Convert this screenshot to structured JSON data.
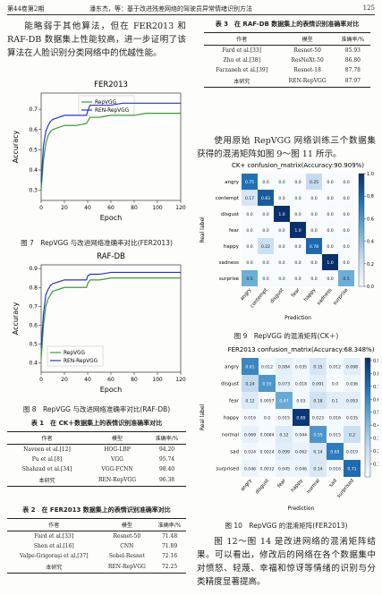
{
  "header": {
    "volume": "第44卷第2期",
    "running_title": "潘东杰，等：基于改进残差网络的驾驶员异常情绪识别方法",
    "page": "125"
  },
  "left_paragraph": "能略弱于其他算法，但在 FER2013 和 RAF-DB 数据集上性能较高，进一步证明了该算法在人脸识别分类网络中的优越性能。",
  "captions": [
    "图 7　RepVGG 与改进网络准确率对比(FER2013)",
    "图 8　RepVGG 与改进网络准确率对比(RAF-DB)",
    "图 9　RepVGG 的混淆矩阵(CK＋)",
    "图 10　RepVGG 的混淆矩阵(FER2013)"
  ],
  "right_paragraphs": [
    "使用原始 RepVGG 网络训练三个数据集获得的混淆矩阵如图 9～图 11 所示。",
    "图 12～图 14 是改进网络的混淆矩阵结果。可以看出，修改后的网络在各个数据集中对愤怒、轻蔑、幸福和惊讶等情绪的识别与分类精度显著提高。"
  ],
  "tables": [
    {
      "title": "表 1　在 CK＋数据集上的表情识别准确率对比",
      "header": [
        "作者",
        "模型",
        "准确率/%"
      ],
      "rows": [
        [
          "Naveen et al.[12]",
          "HOG-LBP",
          "94.20"
        ],
        [
          "Pu et al.[8]",
          "VGG",
          "95.74"
        ],
        [
          "Shahzad et al.[34]",
          "VGG-FCNN",
          "98.40"
        ],
        [
          "本研究",
          "REN-RepVGG",
          "96.38"
        ]
      ]
    },
    {
      "title": "表 2　在 FER2013 数据集上的表情识别准确率对比",
      "header": [
        "作者",
        "模型",
        "准确率/%"
      ],
      "rows": [
        [
          "Fard et al.[33]",
          "Resnet-50",
          "71.48"
        ],
        [
          "Shen et al.[16]",
          "CNN",
          "71.89"
        ],
        [
          "Valpe-Grigoraşi et al.[37]",
          "Sobel-Resnet",
          "72.16"
        ],
        [
          "本研究",
          "REN-RepVGG",
          "72.25"
        ]
      ]
    },
    {
      "title": "表 3　在 RAF-DB 数据集上的表情识别准确率对比",
      "header": [
        "作者",
        "模型",
        "准确率/%"
      ],
      "rows": [
        [
          "Fard et al.[33]",
          "Resnet-50",
          "85.93"
        ],
        [
          "Zhu et al.[38]",
          "ResNeXt-50",
          "86.80"
        ],
        [
          "Farzaneh et al.[39]",
          "Resnet-18",
          "87.78"
        ],
        [
          "本研究",
          "REN-RepVGG",
          "87.97"
        ]
      ]
    }
  ],
  "chart_data": [
    {
      "type": "line",
      "title": "FER2013",
      "x_label": "Epoch",
      "y_label": "Accuracy",
      "legend": "upper center",
      "x": [
        0,
        2,
        4,
        6,
        8,
        10,
        15,
        20,
        30,
        39,
        40,
        42,
        50,
        60,
        70,
        80,
        90,
        100,
        110,
        120
      ],
      "series": [
        {
          "name": "RepVGG",
          "color": "#3a9a3a",
          "values": [
            0.3,
            0.45,
            0.53,
            0.57,
            0.59,
            0.6,
            0.61,
            0.62,
            0.62,
            0.63,
            0.64,
            0.66,
            0.66,
            0.67,
            0.67,
            0.67,
            0.68,
            0.68,
            0.68,
            0.68
          ]
        },
        {
          "name": "REN-RepVGG",
          "color": "#2436c4",
          "values": [
            0.34,
            0.52,
            0.59,
            0.62,
            0.64,
            0.65,
            0.66,
            0.67,
            0.67,
            0.67,
            0.69,
            0.72,
            0.72,
            0.72,
            0.73,
            0.73,
            0.73,
            0.73,
            0.73,
            0.73
          ]
        }
      ],
      "xlim": [
        0,
        120
      ],
      "xticks": [
        0,
        20,
        40,
        60,
        80,
        100,
        120
      ],
      "ylim": [
        0.25,
        0.78
      ],
      "yticks": [
        0.3,
        0.4,
        0.5,
        0.6,
        0.7
      ]
    },
    {
      "type": "line",
      "title": "RAF-DB",
      "x_label": "Epoch",
      "y_label": "Accuracy",
      "legend": "lower left",
      "x": [
        0,
        2,
        4,
        6,
        8,
        10,
        15,
        20,
        30,
        39,
        40,
        42,
        50,
        60,
        70,
        80,
        90,
        100,
        110,
        120
      ],
      "series": [
        {
          "name": "RepVGG",
          "color": "#3a9a3a",
          "values": [
            0.42,
            0.6,
            0.7,
            0.74,
            0.76,
            0.78,
            0.79,
            0.8,
            0.8,
            0.8,
            0.82,
            0.84,
            0.84,
            0.85,
            0.85,
            0.85,
            0.85,
            0.85,
            0.85,
            0.85
          ]
        },
        {
          "name": "REN-RepVGG",
          "color": "#2436c4",
          "values": [
            0.48,
            0.66,
            0.76,
            0.79,
            0.81,
            0.82,
            0.83,
            0.84,
            0.84,
            0.84,
            0.86,
            0.87,
            0.87,
            0.88,
            0.88,
            0.88,
            0.88,
            0.88,
            0.88,
            0.88
          ]
        }
      ],
      "xlim": [
        0,
        120
      ],
      "xticks": [
        0,
        20,
        40,
        60,
        80,
        100,
        120
      ],
      "ylim": [
        0.35,
        0.92
      ],
      "yticks": [
        0.4,
        0.5,
        0.6,
        0.7,
        0.8,
        0.9
      ]
    },
    {
      "type": "heatmap",
      "title": "CK+ confusion_matrix(Accuracy:90.909%)",
      "x_label": "Prediction",
      "y_label": "Real label",
      "colormap": "Blues",
      "categories": [
        "angry",
        "contempt",
        "disgust",
        "fear",
        "happy",
        "sadness",
        "surprise"
      ],
      "values": [
        [
          0.75,
          0,
          0,
          0,
          0.25,
          0,
          0
        ],
        [
          0.17,
          0.83,
          0,
          0,
          0,
          0,
          0
        ],
        [
          0,
          0,
          1,
          0,
          0,
          0,
          0
        ],
        [
          0,
          0,
          0,
          1,
          0,
          0,
          0
        ],
        [
          0,
          0.22,
          0,
          0,
          0.78,
          0,
          0
        ],
        [
          0,
          0,
          0,
          0,
          0,
          1,
          0
        ],
        [
          0.5,
          0,
          0,
          0,
          0,
          0,
          0.5
        ]
      ],
      "value_labels": [
        [
          "0.75",
          "0.0",
          "0.0",
          "0.0",
          "0.25",
          "0.0",
          "0.0"
        ],
        [
          "0.17",
          "0.83",
          "0.0",
          "0.0",
          "0.0",
          "0.0",
          "0.0"
        ],
        [
          "0.0",
          "0.0",
          "1.0",
          "0.0",
          "0.0",
          "0.0",
          "0.0"
        ],
        [
          "0.0",
          "0.0",
          "0.0",
          "1.0",
          "0.0",
          "0.0",
          "0.0"
        ],
        [
          "0.0",
          "0.22",
          "0.0",
          "0.0",
          "0.78",
          "0.0",
          "0.0"
        ],
        [
          "0.0",
          "0.0",
          "0.0",
          "0.0",
          "0.0",
          "1.0",
          "0.0"
        ],
        [
          "0.5",
          "0.0",
          "0.0",
          "0.0",
          "0.0",
          "0.0",
          "0.5"
        ]
      ],
      "clim": [
        0,
        1
      ],
      "cticks": [
        {
          "value": 0,
          "label": "0.0"
        },
        0.2,
        0.4,
        0.6,
        0.8,
        {
          "value": 1,
          "label": "1.0"
        }
      ]
    },
    {
      "type": "heatmap",
      "title": "FER2013 confusion_matrix(Accuracy:68.348%)",
      "x_label": "Prediction",
      "y_label": "Real label",
      "colormap": "Blues",
      "categories": [
        "angry",
        "disgust",
        "fear",
        "happy",
        "normal",
        "sad",
        "surprised"
      ],
      "values": [
        [
          0.61,
          0.012,
          0.084,
          0.035,
          0.15,
          0.012,
          0.098
        ],
        [
          0.24,
          0.55,
          0.073,
          0.018,
          0.091,
          0,
          0.036
        ],
        [
          0.12,
          0.0057,
          0.47,
          0.03,
          0.18,
          0.1,
          0.093
        ],
        [
          0.016,
          0,
          0.015,
          0.89,
          0.023,
          0.016,
          0.035
        ],
        [
          0.069,
          0.0084,
          0.12,
          0.044,
          0.55,
          0.015,
          0.2
        ],
        [
          0.024,
          0.0024,
          0.099,
          0.062,
          0.14,
          0.65,
          0.019
        ],
        [
          0.046,
          0.0032,
          0.045,
          0.046,
          0.14,
          0.016,
          0.71
        ]
      ],
      "value_labels": [
        [
          "0.61",
          "0.012",
          "0.084",
          "0.035",
          "0.15",
          "0.012",
          "0.098"
        ],
        [
          "0.24",
          "0.55",
          "0.073",
          "0.018",
          "0.091",
          "0.0",
          "0.036"
        ],
        [
          "0.12",
          "0.0057",
          "0.47",
          "0.03",
          "0.18",
          "0.1",
          "0.093"
        ],
        [
          "0.016",
          "0.0",
          "0.015",
          "0.89",
          "0.023",
          "0.016",
          "0.035"
        ],
        [
          "0.069",
          "0.0084",
          "0.12",
          "0.044",
          "0.55",
          "0.015",
          "0.2"
        ],
        [
          "0.024",
          "0.0024",
          "0.099",
          "0.062",
          "0.14",
          "0.65",
          "0.019"
        ],
        [
          "0.046",
          "0.0032",
          "0.045",
          "0.046",
          "0.14",
          "0.016",
          "0.71"
        ]
      ],
      "clim": [
        0,
        0.92
      ],
      "cticks": [
        0.1,
        0.2,
        0.3,
        0.4,
        0.5,
        0.6,
        0.7,
        0.8,
        0.9
      ]
    }
  ]
}
